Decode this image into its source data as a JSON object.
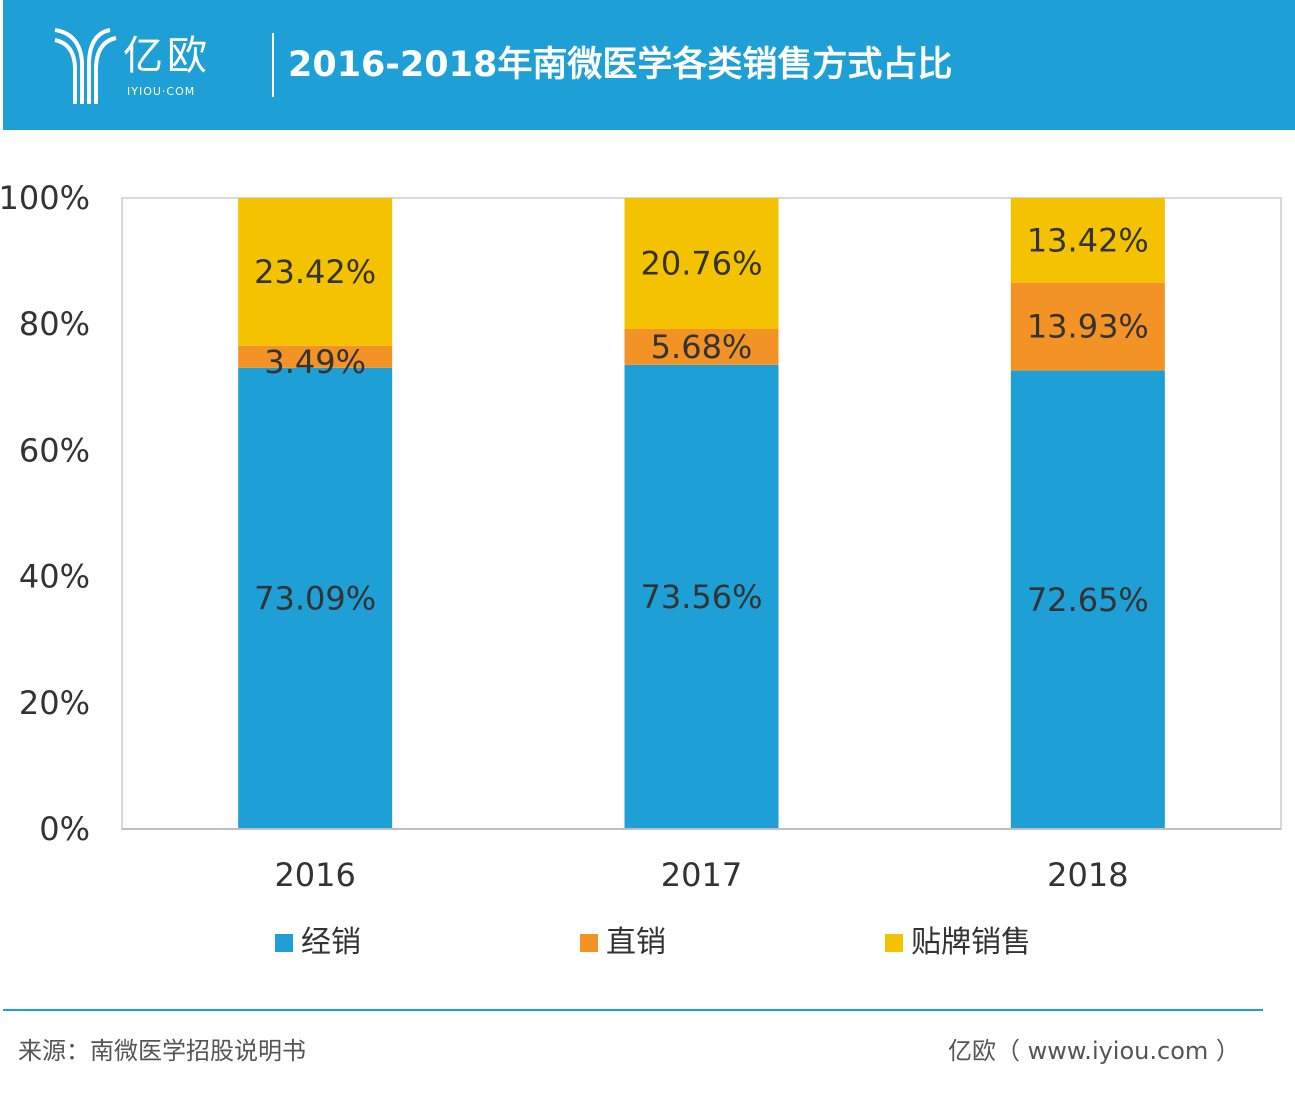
{
  "header": {
    "logo_text": "亿欧",
    "logo_sub": "IYIOU·COM",
    "title": "2016-2018年南微医学各类销售方式占比"
  },
  "colors": {
    "header": "#1E9FD6",
    "经销": "#1E9FD6",
    "直销": "#F39325",
    "贴牌销售": "#F5C200"
  },
  "chart_data": {
    "type": "bar",
    "stacked": true,
    "categories": [
      "2016",
      "2017",
      "2018"
    ],
    "series": [
      {
        "name": "经销",
        "values": [
          73.09,
          73.56,
          72.65
        ],
        "labels": [
          "73.09%",
          "73.56%",
          "72.65%"
        ]
      },
      {
        "name": "直销",
        "values": [
          3.49,
          5.68,
          13.93
        ],
        "labels": [
          "3.49%",
          "5.68%",
          "13.93%"
        ]
      },
      {
        "name": "贴牌销售",
        "values": [
          23.42,
          20.76,
          13.42
        ],
        "labels": [
          "23.42%",
          "20.76%",
          "13.42%"
        ]
      }
    ],
    "ylim": [
      0,
      100
    ],
    "yticks": [
      "0%",
      "20%",
      "40%",
      "60%",
      "80%",
      "100%"
    ],
    "grid": false,
    "legend": "bottom"
  },
  "footer": {
    "source": "来源：南微医学招股说明书",
    "site": "亿欧（ www.iyiou.com ）"
  }
}
